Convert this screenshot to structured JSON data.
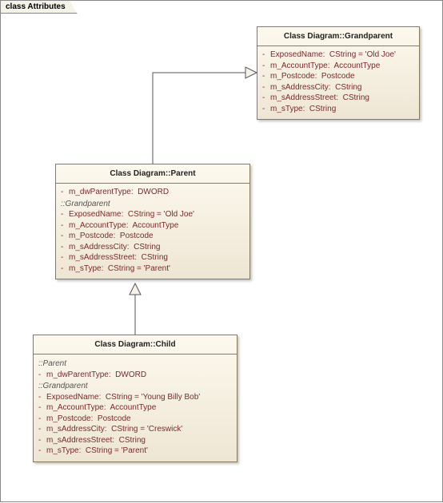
{
  "frame": {
    "title": "class Attributes"
  },
  "grandparent": {
    "title": "Class Diagram::Grandparent",
    "attrs": [
      {
        "vis": "-",
        "text": "ExposedName:  CString = 'Old Joe'"
      },
      {
        "vis": "-",
        "text": "m_AccountType:  AccountType"
      },
      {
        "vis": "-",
        "text": "m_Postcode:  Postcode"
      },
      {
        "vis": "-",
        "text": "m_sAddressCity:  CString"
      },
      {
        "vis": "-",
        "text": "m_sAddressStreet:  CString"
      },
      {
        "vis": "-",
        "text": "m_sType:  CString"
      }
    ]
  },
  "parent": {
    "title": "Class Diagram::Parent",
    "own": [
      {
        "vis": "-",
        "text": "m_dwParentType:  DWORD"
      }
    ],
    "section": "::Grandparent",
    "inherited": [
      {
        "vis": "-",
        "text": "ExposedName:  CString = 'Old Joe'"
      },
      {
        "vis": "-",
        "text": "m_AccountType:  AccountType"
      },
      {
        "vis": "-",
        "text": "m_Postcode:  Postcode"
      },
      {
        "vis": "-",
        "text": "m_sAddressCity:  CString"
      },
      {
        "vis": "-",
        "text": "m_sAddressStreet:  CString"
      },
      {
        "vis": "-",
        "text": "m_sType:  CString = 'Parent'"
      }
    ]
  },
  "child": {
    "title": "Class Diagram::Child",
    "section1": "::Parent",
    "fromParent": [
      {
        "vis": "-",
        "text": "m_dwParentType:  DWORD"
      }
    ],
    "section2": "::Grandparent",
    "fromGrand": [
      {
        "vis": "-",
        "text": "ExposedName:  CString = 'Young Billy Bob'"
      },
      {
        "vis": "-",
        "text": "m_AccountType:  AccountType"
      },
      {
        "vis": "-",
        "text": "m_Postcode:  Postcode"
      },
      {
        "vis": "-",
        "text": "m_sAddressCity:  CString = 'Creswick'"
      },
      {
        "vis": "-",
        "text": "m_sAddressStreet:  CString"
      },
      {
        "vis": "-",
        "text": "m_sType:  CString = 'Parent'"
      }
    ]
  },
  "style": {
    "connector_color": "#555",
    "arrowhead_fill": "#f5f2e8"
  }
}
